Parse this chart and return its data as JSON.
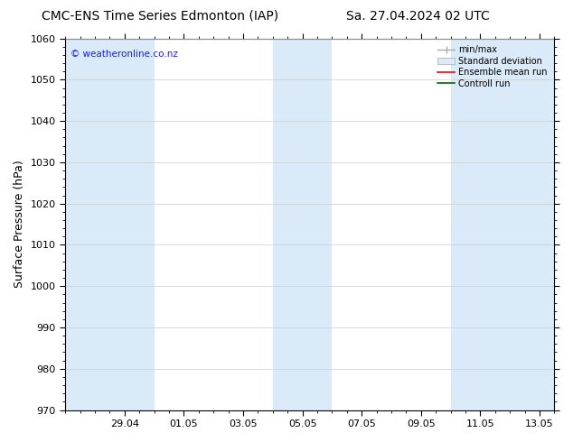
{
  "title_left": "CMC-ENS Time Series Edmonton (IAP)",
  "title_right": "Sa. 27.04.2024 02 UTC",
  "ylabel": "Surface Pressure (hPa)",
  "watermark": "© weatheronline.co.nz",
  "watermark_color": "#1a1aff",
  "ylim": [
    970,
    1060
  ],
  "ytick_major": 10,
  "background_color": "#ffffff",
  "plot_bg_color": "#ffffff",
  "legend_labels": [
    "min/max",
    "Standard deviation",
    "Ensemble mean run",
    "Controll run"
  ],
  "shaded_band_color": "#daeaf8",
  "tick_labels": [
    "29.04",
    "01.05",
    "03.05",
    "05.05",
    "07.05",
    "09.05",
    "11.05",
    "13.05"
  ],
  "tick_positions": [
    2,
    4,
    6,
    8,
    10,
    12,
    14,
    16
  ],
  "shaded_columns": [
    [
      0.0,
      1.0
    ],
    [
      1.0,
      3.0
    ],
    [
      7.0,
      9.0
    ],
    [
      13.0,
      15.0
    ],
    [
      15.0,
      16.5
    ]
  ],
  "x_min": 0.0,
  "x_max": 16.5,
  "title_fontsize": 10,
  "label_fontsize": 9,
  "tick_fontsize": 8,
  "grid_color": "#cccccc"
}
